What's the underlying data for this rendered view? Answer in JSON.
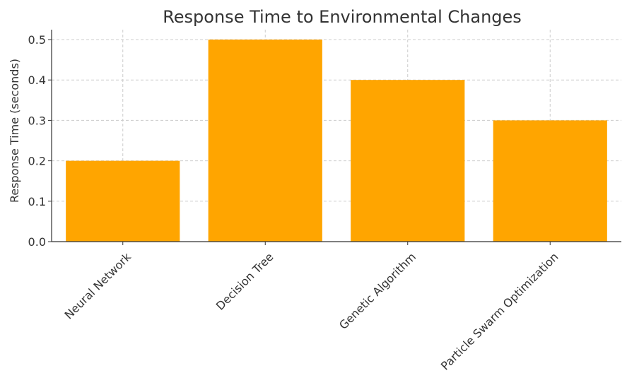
{
  "chart_data": {
    "type": "bar",
    "title": "Response Time to Environmental Changes",
    "xlabel": "",
    "ylabel": "Response Time (seconds)",
    "categories": [
      "Neural Network",
      "Decision Tree",
      "Genetic Algorithm",
      "Particle Swarm Optimization"
    ],
    "values": [
      0.2,
      0.5,
      0.4,
      0.3
    ],
    "ylim": [
      0,
      0.5
    ],
    "yticks": [
      "0.0",
      "0.1",
      "0.2",
      "0.3",
      "0.4",
      "0.5"
    ],
    "grid": true,
    "bar_color": "#FFA500",
    "grid_color": "#cccccc"
  }
}
